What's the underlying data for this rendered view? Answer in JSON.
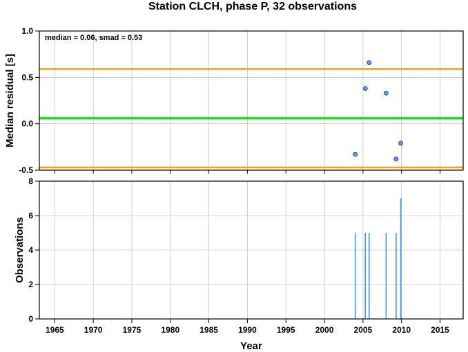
{
  "chart_data": [
    {
      "type": "scatter",
      "title": "Station CLCH, phase P, 32 observations",
      "ylabel": "Median residual [s]",
      "annotation": "median = 0.06, smad = 0.53",
      "xlim": [
        1963,
        2018
      ],
      "ylim": [
        -0.5,
        1.0
      ],
      "yticks": [
        "1.0",
        "0.5",
        "0.0",
        "-0.5"
      ],
      "ytick_values": [
        1.0,
        0.5,
        0.0,
        -0.5
      ],
      "grid": true,
      "reference_lines": [
        {
          "role": "median",
          "y": 0.06,
          "color": "#22dd22"
        },
        {
          "role": "upper",
          "y": 0.59,
          "color": "#ffa500"
        },
        {
          "role": "lower",
          "y": -0.47,
          "color": "#ffa500"
        }
      ],
      "points": {
        "color": "#6699ee",
        "x": [
          2004.0,
          2005.3,
          2005.8,
          2008.0,
          2009.3,
          2009.9
        ],
        "y": [
          -0.33,
          0.38,
          0.66,
          0.33,
          -0.38,
          -0.21
        ]
      }
    },
    {
      "type": "bar",
      "ylabel": "Observations",
      "xlabel": "Year",
      "xlim": [
        1963,
        2018
      ],
      "ylim": [
        0,
        8
      ],
      "xticks": [
        "1965",
        "1970",
        "1975",
        "1980",
        "1985",
        "1990",
        "1995",
        "2000",
        "2005",
        "2010",
        "2015"
      ],
      "xtick_values": [
        1965,
        1970,
        1975,
        1980,
        1985,
        1990,
        1995,
        2000,
        2005,
        2010,
        2015
      ],
      "yticks": [
        "8",
        "6",
        "4",
        "2",
        "0"
      ],
      "ytick_values": [
        8,
        6,
        4,
        2,
        0
      ],
      "grid": true,
      "color": "#4499dd",
      "x": [
        2004.0,
        2005.3,
        2005.8,
        2008.0,
        2009.3,
        2009.9
      ],
      "values": [
        5,
        5,
        5,
        5,
        5,
        7
      ]
    }
  ]
}
